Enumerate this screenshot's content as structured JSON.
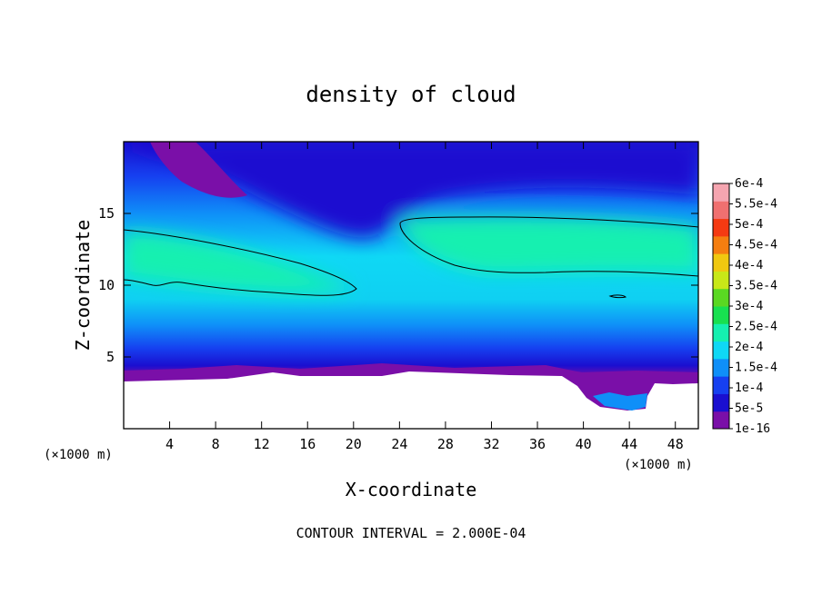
{
  "chart_data": {
    "type": "heatmap",
    "title": "density of cloud",
    "xlabel": "X-coordinate",
    "ylabel": "Z-coordinate",
    "x_unit": "(×1000 m)",
    "z_unit": "(×1000 m)",
    "xlim": [
      0,
      50
    ],
    "ylim": [
      0,
      20
    ],
    "x_ticks": [
      4,
      8,
      12,
      16,
      20,
      24,
      28,
      32,
      36,
      40,
      44,
      48
    ],
    "y_ticks": [
      5,
      10,
      15
    ],
    "colorbar": {
      "labels": [
        "1e-16",
        "5e-5",
        "1e-4",
        "1.5e-4",
        "2e-4",
        "2.5e-4",
        "3e-4",
        "3.5e-4",
        "4e-4",
        "4.5e-4",
        "5e-4",
        "5.5e-4",
        "6e-4"
      ],
      "colors": [
        "#7a0fa8",
        "#1a0fd0",
        "#1640f0",
        "#0f8ff8",
        "#0fd8f5",
        "#15f0b0",
        "#18e050",
        "#5ad822",
        "#c8e818",
        "#f0c810",
        "#f57e10",
        "#f53a12",
        "#f07070",
        "#f5a5b0"
      ]
    },
    "annotation": "CONTOUR INTERVAL = 2.000E-04",
    "background": "#ffffff"
  }
}
